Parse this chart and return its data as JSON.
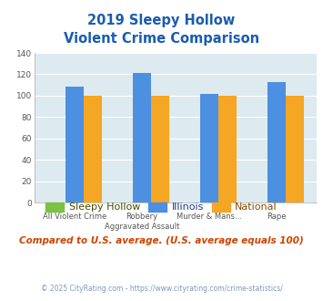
{
  "title_line1": "2019 Sleepy Hollow",
  "title_line2": "Violent Crime Comparison",
  "x_labels_top": [
    "",
    "Robbery",
    "Murder & Mans...",
    ""
  ],
  "x_labels_bot": [
    "All Violent Crime",
    "Aggravated Assault",
    "",
    "Rape"
  ],
  "sleepy_hollow": [
    0,
    0,
    0,
    0
  ],
  "illinois": [
    108,
    121,
    102,
    113
  ],
  "national": [
    100,
    100,
    100,
    100
  ],
  "ylim": [
    0,
    140
  ],
  "yticks": [
    0,
    20,
    40,
    60,
    80,
    100,
    120,
    140
  ],
  "color_sleepy": "#7bc143",
  "color_illinois": "#4d8fe0",
  "color_national": "#f5a623",
  "bg_color": "#ddeaf0",
  "title_color": "#1a5cb0",
  "footer_text": "Compared to U.S. average. (U.S. average equals 100)",
  "copyright_text": "© 2025 CityRating.com - https://www.cityrating.com/crime-statistics/",
  "legend_labels": [
    "Sleepy Hollow",
    "Illinois",
    "National"
  ],
  "footer_color": "#cc4400",
  "copyright_color": "#7a9abf"
}
